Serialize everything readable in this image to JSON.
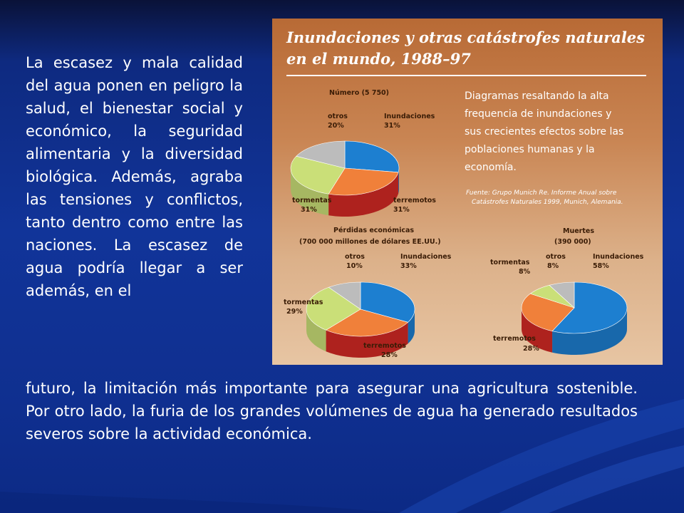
{
  "slide": {
    "paragraph_left": "La escasez y mala calidad del agua ponen en peligro la salud, el bienestar social y económico, la seguridad alimentaria y la diversidad biológica. Además, agraba las tensiones y conflictos, tanto dentro como entre las naciones. La escasez de agua podría llegar a ser además, en el",
    "paragraph_bottom": "futuro, la limitación más importante para asegurar una agricultura sostenible. Por otro lado, la furia de los grandes volúmenes de agua ha generado resultados severos sobre la actividad económica."
  },
  "figure": {
    "title_line1": "Inundaciones y otras catástrofes naturales",
    "title_line2": "en el mundo, 1988–97",
    "description": [
      "Diagramas resaltando la alta",
      "frequencia de inundaciones y",
      "sus crecientes efectos sobre las",
      "poblaciones humanas y la",
      "economía."
    ],
    "source": [
      "Fuente: Grupo Munich Re. Informe Anual sobre",
      "Catástrofes Naturales 1999, Munich, Alemania."
    ]
  },
  "colors": {
    "inundaciones": "#1d7fd0",
    "terremotos": "#d42a24",
    "tormentas": "#cadf78",
    "otros": "#bcbcbc",
    "terremotos_top": "#f0803a"
  },
  "chart_data": [
    {
      "type": "pie",
      "title": "Número (5 750)",
      "slices": [
        {
          "name": "inundaciones",
          "label": "Inundaciones",
          "value": 31,
          "value_label": "31%"
        },
        {
          "name": "terremotos",
          "label": "terremotos",
          "value": 31,
          "value_label": "31%"
        },
        {
          "name": "tormentas",
          "label": "tormentas",
          "value": 31,
          "value_label": "31%"
        },
        {
          "name": "otros",
          "label": "otros",
          "value": 20,
          "value_label": "20%"
        }
      ]
    },
    {
      "type": "pie",
      "title": "Pérdidas económicas",
      "subtitle": "(700 000 millones de dólares EE.UU.)",
      "slices": [
        {
          "name": "inundaciones",
          "label": "Inundaciones",
          "value": 33,
          "value_label": "33%"
        },
        {
          "name": "terremotos",
          "label": "terremotos",
          "value": 28,
          "value_label": "28%"
        },
        {
          "name": "tormentas",
          "label": "tormentas",
          "value": 29,
          "value_label": "29%"
        },
        {
          "name": "otros",
          "label": "otros",
          "value": 10,
          "value_label": "10%"
        }
      ]
    },
    {
      "type": "pie",
      "title": "Muertes",
      "subtitle": "(390 000)",
      "slices": [
        {
          "name": "inundaciones",
          "label": "Inundaciones",
          "value": 58,
          "value_label": "58%"
        },
        {
          "name": "terremotos",
          "label": "terremotos",
          "value": 28,
          "value_label": "28%"
        },
        {
          "name": "tormentas",
          "label": "tormentas",
          "value": 8,
          "value_label": "8%"
        },
        {
          "name": "otros",
          "label": "otros",
          "value": 8,
          "value_label": "8%"
        }
      ]
    }
  ]
}
